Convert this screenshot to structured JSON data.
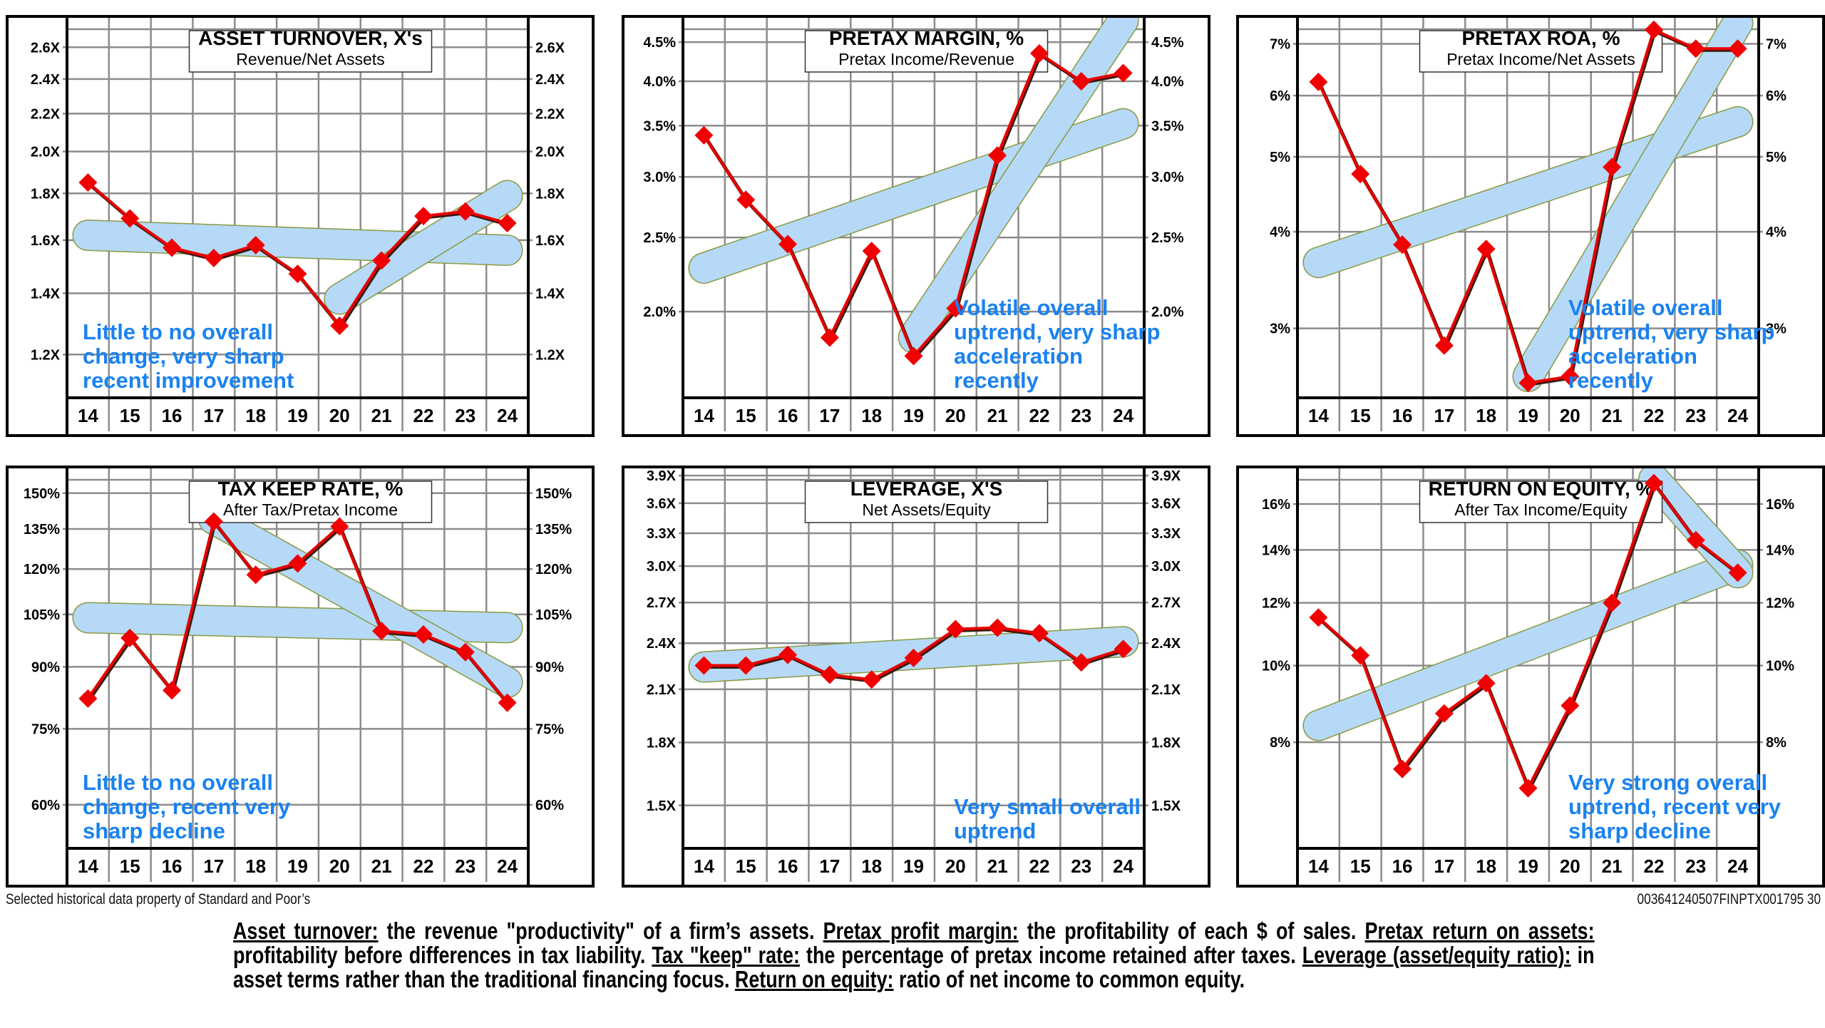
{
  "years": [
    "14",
    "15",
    "16",
    "17",
    "18",
    "19",
    "20",
    "21",
    "22",
    "23",
    "24"
  ],
  "chart_data": [
    {
      "id": "asset-turnover",
      "type": "line",
      "title": "ASSET TURNOVER, X's",
      "subtitle": "Revenue/Net Assets",
      "scale": "log",
      "ylim": [
        1.08,
        2.78
      ],
      "yticks": [
        1.2,
        1.4,
        1.6,
        1.8,
        2.0,
        2.2,
        2.4,
        2.6
      ],
      "ytick_labels": [
        "1.2X",
        "1.4X",
        "1.6X",
        "1.8X",
        "2.0X",
        "2.2X",
        "2.4X",
        "2.6X"
      ],
      "x": [
        "14",
        "15",
        "16",
        "17",
        "18",
        "19",
        "20",
        "21",
        "22",
        "23",
        "24"
      ],
      "values": [
        1.85,
        1.69,
        1.57,
        1.53,
        1.58,
        1.47,
        1.29,
        1.52,
        1.7,
        1.72,
        1.67
      ],
      "trends": [
        {
          "from": [
            "14",
            1.62
          ],
          "to": [
            "24",
            1.56
          ]
        },
        {
          "from": [
            "20",
            1.38
          ],
          "to": [
            "24",
            1.79
          ]
        }
      ],
      "annotation": [
        "Little to no overall",
        "change, very sharp",
        "recent improvement"
      ],
      "annotation_pos": "bottom-left",
      "grid": true
    },
    {
      "id": "pretax-margin",
      "type": "line",
      "title": "PRETAX MARGIN, %",
      "subtitle": "Pretax Income/Revenue",
      "scale": "log",
      "ylim": [
        1.55,
        4.8
      ],
      "yticks": [
        2.0,
        2.5,
        3.0,
        3.5,
        4.0,
        4.5
      ],
      "ytick_labels": [
        "2.0%",
        "2.5%",
        "3.0%",
        "3.5%",
        "4.0%",
        "4.5%"
      ],
      "x": [
        "14",
        "15",
        "16",
        "17",
        "18",
        "19",
        "20",
        "21",
        "22",
        "23",
        "24"
      ],
      "values": [
        3.4,
        2.8,
        2.45,
        1.85,
        2.4,
        1.75,
        2.02,
        3.2,
        4.35,
        4.0,
        4.1
      ],
      "trends": [
        {
          "from": [
            "14",
            2.28
          ],
          "to": [
            "24",
            3.52
          ]
        },
        {
          "from": [
            "19",
            1.85
          ],
          "to": [
            "24",
            4.8
          ]
        }
      ],
      "annotation": [
        "Volatile overall",
        "uptrend, very sharp",
        "acceleration",
        "recently"
      ],
      "annotation_pos": "bottom-center",
      "grid": true
    },
    {
      "id": "pretax-roa",
      "type": "line",
      "title": "PRETAX ROA, %",
      "subtitle": "Pretax Income/Net Assets",
      "scale": "log",
      "ylim": [
        2.45,
        7.5
      ],
      "yticks": [
        3,
        4,
        5,
        6,
        7
      ],
      "ytick_labels": [
        "3%",
        "4%",
        "5%",
        "6%",
        "7%"
      ],
      "x": [
        "14",
        "15",
        "16",
        "17",
        "18",
        "19",
        "20",
        "21",
        "22",
        "23",
        "24"
      ],
      "values": [
        6.25,
        4.75,
        3.85,
        2.85,
        3.8,
        2.55,
        2.6,
        4.85,
        7.3,
        6.9,
        6.9
      ],
      "trends": [
        {
          "from": [
            "14",
            3.65
          ],
          "to": [
            "24",
            5.55
          ]
        },
        {
          "from": [
            "19",
            2.6
          ],
          "to": [
            "24",
            7.45
          ]
        }
      ],
      "annotation": [
        "Volatile overall",
        "uptrend, very sharp",
        "acceleration",
        "recently"
      ],
      "annotation_pos": "bottom-center",
      "grid": true
    },
    {
      "id": "tax-keep-rate",
      "type": "line",
      "title": "TAX KEEP RATE, %",
      "subtitle": "After Tax/Pretax Income",
      "scale": "log",
      "ylim": [
        53,
        160
      ],
      "yticks": [
        60,
        75,
        90,
        105,
        120,
        135,
        150
      ],
      "ytick_labels": [
        "60%",
        "75%",
        "90%",
        "105%",
        "120%",
        "135%",
        "150%"
      ],
      "x": [
        "14",
        "15",
        "16",
        "17",
        "18",
        "19",
        "20",
        "21",
        "22",
        "23",
        "24"
      ],
      "values": [
        82,
        98,
        84,
        138,
        118,
        122,
        136,
        100,
        99,
        94,
        81
      ],
      "trends": [
        {
          "from": [
            "14",
            104
          ],
          "to": [
            "24",
            101
          ]
        },
        {
          "from": [
            "17",
            139
          ],
          "to": [
            "24",
            86
          ]
        }
      ],
      "annotation": [
        "Little to no overall",
        "change, recent very",
        "sharp decline"
      ],
      "annotation_pos": "bottom-left",
      "grid": true
    },
    {
      "id": "leverage",
      "type": "line",
      "title": "LEVERAGE, X'S",
      "subtitle": "Net Assets/Equity",
      "scale": "log",
      "ylim": [
        1.33,
        3.95
      ],
      "yticks": [
        1.5,
        1.8,
        2.1,
        2.4,
        2.7,
        3.0,
        3.3,
        3.6,
        3.9
      ],
      "ytick_labels": [
        "1.5X",
        "1.8X",
        "2.1X",
        "2.4X",
        "2.7X",
        "3.0X",
        "3.3X",
        "3.6X",
        "3.9X"
      ],
      "x": [
        "14",
        "15",
        "16",
        "17",
        "18",
        "19",
        "20",
        "21",
        "22",
        "23",
        "24"
      ],
      "values": [
        2.25,
        2.25,
        2.32,
        2.19,
        2.16,
        2.3,
        2.5,
        2.51,
        2.47,
        2.27,
        2.36
      ],
      "trends": [
        {
          "from": [
            "14",
            2.24
          ],
          "to": [
            "24",
            2.41
          ]
        }
      ],
      "annotation": [
        "Very small overall",
        "uptrend"
      ],
      "annotation_pos": "bottom-center",
      "grid": true
    },
    {
      "id": "return-on-equity",
      "type": "line",
      "title": "RETURN ON EQUITY, %",
      "subtitle": "After Tax Income/Equity",
      "scale": "log",
      "ylim": [
        5.9,
        17.6
      ],
      "yticks": [
        8,
        10,
        12,
        14,
        16
      ],
      "ytick_labels": [
        "8%",
        "10%",
        "12%",
        "14%",
        "16%"
      ],
      "x": [
        "14",
        "15",
        "16",
        "17",
        "18",
        "19",
        "20",
        "21",
        "22",
        "23",
        "24"
      ],
      "values": [
        11.5,
        10.3,
        7.4,
        8.7,
        9.5,
        7.0,
        8.9,
        12.0,
        17.0,
        14.4,
        13.1
      ],
      "trends": [
        {
          "from": [
            "14",
            8.4
          ],
          "to": [
            "24",
            13.4
          ]
        },
        {
          "from": [
            "22",
            17.2
          ],
          "to": [
            "24",
            13.1
          ]
        }
      ],
      "annotation": [
        "Very strong overall",
        "uptrend, recent very",
        "sharp decline"
      ],
      "annotation_pos": "bottom-center",
      "grid": true
    }
  ],
  "colors": {
    "line": "#e60000",
    "line_shadow": "#3a1a10",
    "marker": "#f00000",
    "trend_fill": "#b5d9f7",
    "trend_outline": "#8a9a40",
    "grid": "#8c8c8c",
    "annotation": "#1a82f0"
  },
  "footer": {
    "source_note": "Selected historical data property of Standard and Poor’s",
    "doc_id": "003641240507FINPTX001795  30"
  },
  "glossary": [
    {
      "term": "Asset turnover:",
      "text": " the revenue \"productivity\" of a firm’s assets. "
    },
    {
      "term": "Pretax profit margin:",
      "text": " the profitability of each $ of sales. "
    },
    {
      "term": "Pretax return on assets:",
      "text": " profitability before differences in tax liability. "
    },
    {
      "term": "Tax \"keep\" rate:",
      "text": " the percentage of pretax income retained after taxes. "
    },
    {
      "term": "Leverage (asset/equity ratio):",
      "text": " in asset terms rather than the traditional financing focus. "
    },
    {
      "term": "Return on equity:",
      "text": " ratio of net income to common equity."
    }
  ]
}
